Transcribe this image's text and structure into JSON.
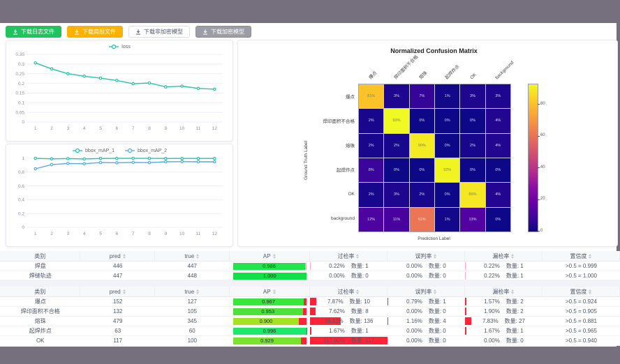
{
  "chrome": {
    "frame_color": "#76707E"
  },
  "toolbar": {
    "buttons": [
      {
        "label": "下载日志文件",
        "variant": "green",
        "icon": "download-icon"
      },
      {
        "label": "下载简报文件",
        "variant": "orange",
        "icon": "download-icon"
      },
      {
        "label": "下载非加密模型",
        "variant": "plain",
        "icon": "download-icon"
      },
      {
        "label": "下载加密模型",
        "variant": "gray",
        "icon": "download-icon"
      }
    ]
  },
  "chart_data": [
    {
      "id": "loss",
      "type": "line",
      "title": "",
      "x": [
        1,
        2,
        3,
        4,
        5,
        6,
        7,
        8,
        9,
        10,
        11,
        12
      ],
      "series": [
        {
          "name": "loss",
          "color": "#23C6A8",
          "values": [
            0.306,
            0.275,
            0.25,
            0.237,
            0.227,
            0.215,
            0.198,
            0.202,
            0.182,
            0.186,
            0.174,
            0.17
          ]
        }
      ],
      "ylim": [
        0,
        0.35
      ],
      "yticks": [
        0,
        0.05,
        0.1,
        0.15,
        0.2,
        0.25,
        0.3,
        0.35
      ],
      "grid": true,
      "legend_position": "top"
    },
    {
      "id": "map",
      "type": "line",
      "title": "",
      "x": [
        1,
        2,
        3,
        4,
        5,
        6,
        7,
        8,
        9,
        10,
        11,
        12
      ],
      "series": [
        {
          "name": "bbox_mAP_1",
          "color": "#23C6A8",
          "values": [
            0.999,
            0.992,
            0.996,
            0.991,
            0.997,
            0.999,
            0.999,
            0.999,
            0.997,
            0.998,
            0.998,
            0.998
          ]
        },
        {
          "name": "bbox_mAP_2",
          "color": "#57A9E8",
          "values": [
            0.848,
            0.908,
            0.925,
            0.921,
            0.938,
            0.935,
            0.94,
            0.937,
            0.949,
            0.952,
            0.95,
            0.949
          ]
        }
      ],
      "ylim": [
        0,
        1
      ],
      "yticks": [
        0,
        0.2,
        0.4,
        0.6,
        0.8,
        1
      ],
      "grid": true,
      "legend_position": "top"
    },
    {
      "id": "confusion",
      "type": "heatmap",
      "title": "Normalized Confusion Matrix",
      "xlabel": "Prediction Label",
      "ylabel": "Ground Truth Label",
      "labels": [
        "爆点",
        "焊印面积不合格",
        "熔珠",
        "起焊炸点",
        "OK",
        "background"
      ],
      "matrix": [
        [
          81,
          3,
          7,
          1,
          3,
          3
        ],
        [
          2,
          93,
          0,
          0,
          0,
          4
        ],
        [
          2,
          2,
          90,
          0,
          2,
          4
        ],
        [
          8,
          0,
          0,
          92,
          0,
          0
        ],
        [
          2,
          3,
          2,
          0,
          89,
          4
        ],
        [
          12,
          11,
          61,
          1,
          13,
          0
        ]
      ],
      "unit": "%",
      "vmax": 93,
      "colorbar_ticks": [
        0,
        20,
        40,
        60,
        80
      ],
      "colormap": "plasma",
      "legend_position": "right"
    }
  ],
  "tables": [
    {
      "headers": [
        "类别",
        "pred",
        "true",
        "AP",
        "过检率",
        "误判率",
        "漏检率",
        "置信度"
      ],
      "sortable": [
        false,
        true,
        true,
        true,
        true,
        true,
        true,
        true
      ],
      "deficit_color": "#FFABBE",
      "rows": [
        {
          "name": "焊盘",
          "pred": "446",
          "true_count": "447",
          "ap": "0.986",
          "ap_value": 0.986,
          "ap_color": "#24E44E",
          "over": {
            "pct": "0.22%",
            "count": "数量: 1",
            "bar": 0.22
          },
          "mis": {
            "pct": "0.00%",
            "count": "数量: 0",
            "bar": 0
          },
          "miss": {
            "pct": "0.22%",
            "count": "数量: 1",
            "bar": 0.22
          },
          "conf": ">0.5 = 0.999"
        },
        {
          "name": "焊缝轨迹",
          "pred": "447",
          "true_count": "448",
          "ap": "1.000",
          "ap_value": 1.0,
          "ap_color": "#12E047",
          "over": {
            "pct": "0.00%",
            "count": "数量: 0",
            "bar": 0
          },
          "mis": {
            "pct": "0.00%",
            "count": "数量: 0",
            "bar": 0
          },
          "miss": {
            "pct": "0.22%",
            "count": "数量: 1",
            "bar": 0.22
          },
          "conf": ">0.5 = 1.000"
        }
      ]
    },
    {
      "headers": [
        "类别",
        "pred",
        "true",
        "AP",
        "过检率",
        "误判率",
        "漏检率",
        "置信度"
      ],
      "sortable": [
        false,
        true,
        true,
        true,
        true,
        true,
        true,
        true
      ],
      "deficit_color": "#FF2438",
      "rows": [
        {
          "name": "爆点",
          "pred": "152",
          "true_count": "127",
          "ap": "0.967",
          "ap_value": 0.967,
          "ap_color": "#35E83B",
          "over": {
            "pct": "7.87%",
            "count": "数量: 10",
            "bar": 7.87
          },
          "mis": {
            "pct": "0.79%",
            "count": "数量: 1",
            "bar": 0.79
          },
          "miss": {
            "pct": "1.57%",
            "count": "数量: 2",
            "bar": 1.57
          },
          "conf": ">0.5 = 0.924"
        },
        {
          "name": "焊印面积不合格",
          "pred": "132",
          "true_count": "105",
          "ap": "0.953",
          "ap_value": 0.953,
          "ap_color": "#4DE23A",
          "over": {
            "pct": "7.62%",
            "count": "数量: 8",
            "bar": 7.62
          },
          "mis": {
            "pct": "0.00%",
            "count": "数量: 0",
            "bar": 0
          },
          "miss": {
            "pct": "1.90%",
            "count": "数量: 2",
            "bar": 1.9
          },
          "conf": ">0.5 = 0.905"
        },
        {
          "name": "熔珠",
          "pred": "479",
          "true_count": "345",
          "ap": "0.900",
          "ap_value": 0.9,
          "ap_color": "#A4E321",
          "over": {
            "pct": "39.42%",
            "count": "数量: 136",
            "bar": 39.42
          },
          "mis": {
            "pct": "1.16%",
            "count": "数量: 4",
            "bar": 1.16
          },
          "miss": {
            "pct": "7.83%",
            "count": "数量: 27",
            "bar": 7.83
          },
          "conf": ">0.5 = 0.881"
        },
        {
          "name": "起焊炸点",
          "pred": "63",
          "true_count": "60",
          "ap": "0.996",
          "ap_value": 0.996,
          "ap_color": "#1CE96B",
          "over": {
            "pct": "1.67%",
            "count": "数量: 1",
            "bar": 1.67
          },
          "mis": {
            "pct": "0.00%",
            "count": "数量: 0",
            "bar": 0
          },
          "miss": {
            "pct": "1.67%",
            "count": "数量: 1",
            "bar": 1.67
          },
          "conf": ">0.5 = 0.965"
        },
        {
          "name": "OK",
          "pred": "117",
          "true_count": "100",
          "ap": "0.929",
          "ap_value": 0.929,
          "ap_color": "#79E42A",
          "over": {
            "pct": "117.00%",
            "count": "数量: 117",
            "bar": 117
          },
          "mis": {
            "pct": "0.00%",
            "count": "数量: 0",
            "bar": 0
          },
          "miss": {
            "pct": "0.00%",
            "count": "数量: 0",
            "bar": 0
          },
          "conf": ">0.5 = 0.940"
        }
      ]
    }
  ]
}
